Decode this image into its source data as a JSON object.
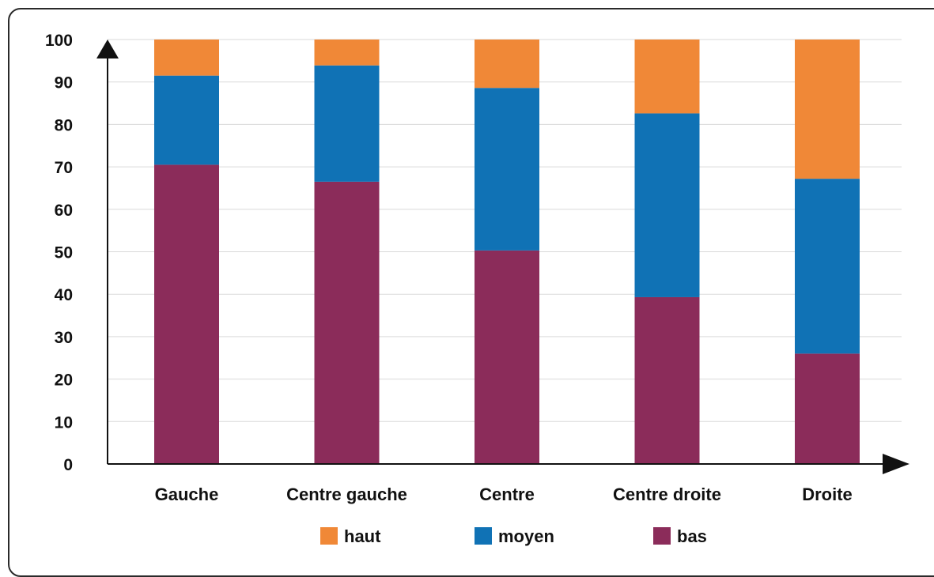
{
  "chart_data": {
    "type": "bar",
    "stacked": true,
    "title": "",
    "xlabel": "",
    "ylabel": "",
    "ylim": [
      0,
      100
    ],
    "yticks": [
      0,
      10,
      20,
      30,
      40,
      50,
      60,
      70,
      80,
      90,
      100
    ],
    "grid": true,
    "legend_position": "bottom",
    "categories": [
      "Gauche",
      "Centre gauche",
      "Centre",
      "Centre droite",
      "Droite"
    ],
    "series": [
      {
        "name": "bas",
        "color": "#8b2c5a",
        "values": [
          70.5,
          66.5,
          50.3,
          39.3,
          26.0
        ]
      },
      {
        "name": "moyen",
        "color": "#1072b5",
        "values": [
          21.0,
          27.4,
          38.3,
          43.3,
          41.2
        ]
      },
      {
        "name": "haut",
        "color": "#f08837",
        "values": [
          8.5,
          6.1,
          11.4,
          17.4,
          32.8
        ]
      }
    ],
    "legend_order": [
      "haut",
      "moyen",
      "bas"
    ]
  }
}
